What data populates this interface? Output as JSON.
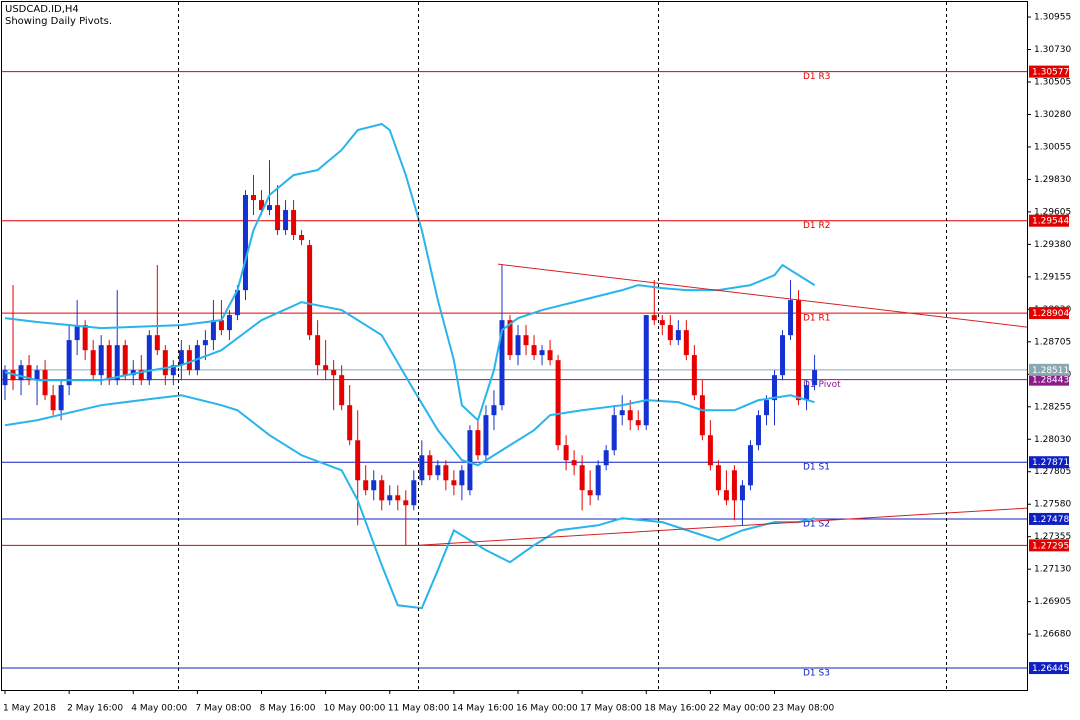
{
  "chart_data": {
    "type": "candlestick",
    "title": "USDCAD.ID,H4",
    "subtitle": "Showing Daily Pivots.",
    "up_color": "#1432d2",
    "down_color": "#e60000",
    "xlim": [
      -0.5,
      127.5
    ],
    "xticks": [
      {
        "value": 0,
        "label": "1 May 2018"
      },
      {
        "value": 8,
        "label": "2 May 16:00"
      },
      {
        "value": 16,
        "label": "4 May 00:00"
      },
      {
        "value": 24,
        "label": "7 May 08:00"
      },
      {
        "value": 32,
        "label": "8 May 16:00"
      },
      {
        "value": 40,
        "label": "10 May 00:00"
      },
      {
        "value": 48,
        "label": "11 May 08:00"
      },
      {
        "value": 56,
        "label": "14 May 16:00"
      },
      {
        "value": 64,
        "label": "16 May 00:00"
      },
      {
        "value": 72,
        "label": "17 May 08:00"
      },
      {
        "value": 80,
        "label": "18 May 16:00"
      },
      {
        "value": 88,
        "label": "22 May 00:00"
      },
      {
        "value": 96,
        "label": "23 May 08:00"
      }
    ],
    "ylim": [
      1.26293,
      1.31073
    ],
    "yticks": [
      1.30955,
      {
        "value": 1.3073,
        "label": "1.30730"
      },
      1.30505,
      {
        "value": 1.3028,
        "label": "1.30280"
      },
      1.30055,
      {
        "value": 1.2983,
        "label": "1.29830"
      },
      1.29605,
      {
        "value": 1.2938,
        "label": "1.29380"
      },
      1.29155,
      {
        "value": 1.2893,
        "label": "1.28930"
      },
      1.28705,
      {
        "value": 1.2848,
        "label": "1.28480"
      },
      1.28255,
      {
        "value": 1.2803,
        "label": "1.28030"
      },
      1.27805,
      {
        "value": 1.2758,
        "label": "1.27580"
      },
      1.27355,
      {
        "value": 1.2713,
        "label": "1.27130"
      },
      1.26905,
      {
        "value": 1.2668,
        "label": "1.26680"
      }
    ],
    "open": [
      1.28405,
      1.28509,
      1.28439,
      1.28543,
      1.28439,
      1.28509,
      1.28335,
      1.28231,
      1.28405,
      1.28717,
      1.28821,
      1.28647,
      1.28474,
      1.28682,
      1.28439,
      1.28682,
      1.28474,
      1.28509,
      1.28439,
      1.28751,
      1.28647,
      1.28474,
      1.28543,
      1.28647,
      1.28509,
      1.28682,
      1.28717,
      1.28855,
      1.28786,
      1.2889,
      1.29063,
      1.29722,
      1.29687,
      1.29618,
      1.29652,
      1.29479,
      1.29618,
      1.29445,
      1.29375,
      1.28751,
      1.28543,
      1.28509,
      1.28474,
      1.28266,
      1.28023,
      1.27746,
      1.27677,
      1.27746,
      1.27607,
      1.27642,
      1.27607,
      1.27573,
      1.27746,
      1.27919,
      1.27781,
      1.2785,
      1.27746,
      1.27711,
      1.27677,
      1.28093,
      1.27919,
      1.28197,
      1.28266,
      1.28855,
      1.28613,
      1.28751,
      1.28682,
      1.28613,
      1.28647,
      1.28578,
      1.27989,
      1.27885,
      1.2785,
      1.27677,
      1.27642,
      1.2785,
      1.27954,
      1.28197,
      1.28231,
      1.28162,
      1.28127,
      1.2889,
      1.28855,
      1.28821,
      1.28717,
      1.28786,
      1.28613,
      1.28335,
      1.28058,
      1.2785,
      1.27677,
      1.27815,
      1.27607,
      1.27711,
      1.27989,
      1.28197,
      1.28301,
      1.28474,
      1.28751,
      1.28994,
      1.28301,
      1.28405
    ],
    "high": [
      1.28543,
      1.29098,
      1.28578,
      1.28613,
      1.28543,
      1.28578,
      1.28405,
      1.28439,
      1.28821,
      1.28994,
      1.28855,
      1.28717,
      1.28751,
      1.28717,
      1.29063,
      1.28717,
      1.28578,
      1.28613,
      1.28786,
      1.29237,
      1.28682,
      1.28578,
      1.28717,
      1.28682,
      1.28717,
      1.28786,
      1.28994,
      1.28994,
      1.28925,
      1.29098,
      1.29756,
      1.2986,
      1.29756,
      1.29964,
      1.29791,
      1.29687,
      1.29687,
      1.29479,
      1.2941,
      1.28855,
      1.28717,
      1.28578,
      1.28543,
      1.28405,
      1.28231,
      1.2785,
      1.27815,
      1.27781,
      1.27711,
      1.27711,
      1.27677,
      1.27815,
      1.28023,
      1.27954,
      1.27885,
      1.27885,
      1.27815,
      1.2785,
      1.28127,
      1.28162,
      1.28266,
      1.2837,
      1.29237,
      1.2889,
      1.28821,
      1.28821,
      1.28751,
      1.28682,
      1.28717,
      1.28613,
      1.28058,
      1.27954,
      1.27919,
      1.27815,
      1.27885,
      1.27989,
      1.28266,
      1.28335,
      1.28301,
      1.28231,
      1.2889,
      1.29133,
      1.2889,
      1.2889,
      1.28855,
      1.28855,
      1.28682,
      1.28439,
      1.28162,
      1.27885,
      1.27815,
      1.2785,
      1.27746,
      1.28023,
      1.28231,
      1.28335,
      1.28509,
      1.28786,
      1.29133,
      1.29063,
      1.28439,
      1.28613
    ],
    "low": [
      1.28301,
      1.2837,
      1.28335,
      1.28405,
      1.28266,
      1.28301,
      1.28197,
      1.28162,
      1.28335,
      1.28613,
      1.28578,
      1.28439,
      1.28405,
      1.28405,
      1.28405,
      1.28439,
      1.28405,
      1.28405,
      1.28405,
      1.28613,
      1.28405,
      1.28405,
      1.28439,
      1.28474,
      1.28474,
      1.28578,
      1.28647,
      1.28751,
      1.28717,
      1.28855,
      1.28994,
      1.29583,
      1.29583,
      1.29583,
      1.29445,
      1.29445,
      1.2941,
      1.29375,
      1.28717,
      1.28474,
      1.28439,
      1.28231,
      1.28231,
      1.27989,
      1.27434,
      1.27642,
      1.27607,
      1.27538,
      1.27573,
      1.27538,
      1.27296,
      1.27538,
      1.27711,
      1.27746,
      1.27746,
      1.27677,
      1.27642,
      1.27607,
      1.27642,
      1.27885,
      1.27885,
      1.28093,
      1.28231,
      1.28578,
      1.28543,
      1.28613,
      1.28578,
      1.28543,
      1.28543,
      1.27954,
      1.27815,
      1.27781,
      1.27538,
      1.27573,
      1.27607,
      1.27815,
      1.27919,
      1.28127,
      1.28093,
      1.28093,
      1.28093,
      1.28821,
      1.28751,
      1.28682,
      1.28682,
      1.28578,
      1.28301,
      1.28023,
      1.27815,
      1.27642,
      1.27573,
      1.27469,
      1.27434,
      1.27677,
      1.27954,
      1.28127,
      1.28127,
      1.28439,
      1.28717,
      1.28266,
      1.28231,
      1.2837
    ],
    "close": [
      1.28509,
      1.28439,
      1.28543,
      1.28439,
      1.28509,
      1.28335,
      1.28231,
      1.28405,
      1.28717,
      1.28821,
      1.28647,
      1.28474,
      1.28682,
      1.28439,
      1.28682,
      1.28474,
      1.28509,
      1.28439,
      1.28751,
      1.28647,
      1.28474,
      1.28543,
      1.28647,
      1.28509,
      1.28682,
      1.28717,
      1.28855,
      1.28786,
      1.2889,
      1.29063,
      1.29722,
      1.29687,
      1.29618,
      1.29652,
      1.29479,
      1.29618,
      1.29445,
      1.2941,
      1.28751,
      1.28543,
      1.28509,
      1.28474,
      1.28266,
      1.28023,
      1.27746,
      1.27677,
      1.27746,
      1.27607,
      1.27642,
      1.27607,
      1.27573,
      1.27746,
      1.27919,
      1.27781,
      1.2785,
      1.27746,
      1.27711,
      1.27815,
      1.28093,
      1.27919,
      1.28197,
      1.28266,
      1.28855,
      1.28613,
      1.28751,
      1.28682,
      1.28613,
      1.28647,
      1.28578,
      1.27989,
      1.27885,
      1.2785,
      1.27677,
      1.27642,
      1.2785,
      1.27954,
      1.28197,
      1.28231,
      1.28162,
      1.28127,
      1.2889,
      1.28855,
      1.28821,
      1.28717,
      1.28786,
      1.28613,
      1.28335,
      1.28058,
      1.2785,
      1.27677,
      1.27607,
      1.27607,
      1.27711,
      1.27989,
      1.28197,
      1.28301,
      1.28474,
      1.28751,
      1.28994,
      1.28301,
      1.28405,
      1.28509
    ],
    "bands": [
      {
        "color": "#28b4ec",
        "x": [
          0,
          4,
          12,
          22,
          27,
          29,
          31,
          33,
          36,
          39,
          42,
          44,
          47,
          48,
          50,
          52,
          54,
          56,
          57,
          59,
          61,
          62,
          64,
          67,
          72,
          77,
          79,
          82,
          85,
          89,
          93,
          96,
          97,
          99,
          101
        ],
        "values": [
          1.28869,
          1.28842,
          1.288,
          1.28821,
          1.28855,
          1.29063,
          1.29479,
          1.29722,
          1.2986,
          1.29895,
          1.30034,
          1.30172,
          1.30214,
          1.30172,
          1.2986,
          1.29479,
          1.28994,
          1.28578,
          1.28266,
          1.28162,
          1.28509,
          1.28786,
          1.28869,
          1.28925,
          1.28994,
          1.29063,
          1.29098,
          1.29077,
          1.29063,
          1.29063,
          1.29098,
          1.29167,
          1.29237,
          1.29167,
          1.29098
        ]
      },
      {
        "color": "#28b4ec",
        "x": [
          0,
          4,
          12,
          17,
          22,
          27,
          32,
          37,
          42,
          47,
          51,
          54,
          57,
          59,
          62,
          66,
          68,
          72,
          77,
          80,
          84,
          87,
          91,
          94,
          98,
          101
        ],
        "values": [
          1.28495,
          1.28439,
          1.28439,
          1.28495,
          1.28543,
          1.28647,
          1.28855,
          1.2898,
          1.28925,
          1.28751,
          1.2837,
          1.28093,
          1.27885,
          1.2785,
          1.27954,
          1.28093,
          1.28197,
          1.28231,
          1.28266,
          1.28301,
          1.28287,
          1.28231,
          1.28231,
          1.28301,
          1.28335,
          1.28287
        ]
      },
      {
        "color": "#28b4ec",
        "x": [
          0,
          4,
          12,
          17,
          22,
          27,
          29,
          33,
          37,
          42,
          44,
          47,
          49,
          52,
          54,
          56,
          60,
          63,
          66,
          69,
          74,
          77,
          82,
          87,
          89,
          92,
          96,
          99,
          101
        ],
        "values": [
          1.28127,
          1.28162,
          1.28266,
          1.28301,
          1.28335,
          1.28266,
          1.28231,
          1.28058,
          1.27919,
          1.27815,
          1.27607,
          1.27158,
          1.2688,
          1.2686,
          1.27123,
          1.27399,
          1.27262,
          1.27178,
          1.27296,
          1.27399,
          1.27434,
          1.27483,
          1.27456,
          1.27365,
          1.2733,
          1.27399,
          1.27456,
          1.27456,
          1.27483
        ]
      }
    ],
    "trendlines": [
      {
        "color": "#d62020",
        "x": [
          61.5,
          127.5
        ],
        "values": [
          1.29243,
          1.28807
        ]
      },
      {
        "color": "#d62020",
        "x": [
          51.6,
          127.5
        ],
        "values": [
          1.27296,
          1.27553
        ]
      }
    ],
    "levels": [
      {
        "label": "D1 R3",
        "value": 1.30577,
        "color": "#e00000"
      },
      {
        "label": "D1 R2",
        "value": 1.29544,
        "color": "#e00000"
      },
      {
        "label": "D1 R1",
        "value": 1.28904,
        "color": "#e00000"
      },
      {
        "label": "D1 Pivot",
        "value": 1.28443,
        "color": "#8b1a8b"
      },
      {
        "label": "D1 S1",
        "value": 1.27871,
        "color": "#1020c0"
      },
      {
        "label": "D1 S2",
        "value": 1.27478,
        "color": "#1020c0"
      },
      {
        "label": "D1 S3",
        "value": 1.26445,
        "color": "#1020c0"
      }
    ],
    "extra_levels": [
      {
        "value": 1.27295,
        "color": "#e00000"
      },
      {
        "value": 1.28511,
        "color": "#8aa8b0"
      }
    ]
  }
}
